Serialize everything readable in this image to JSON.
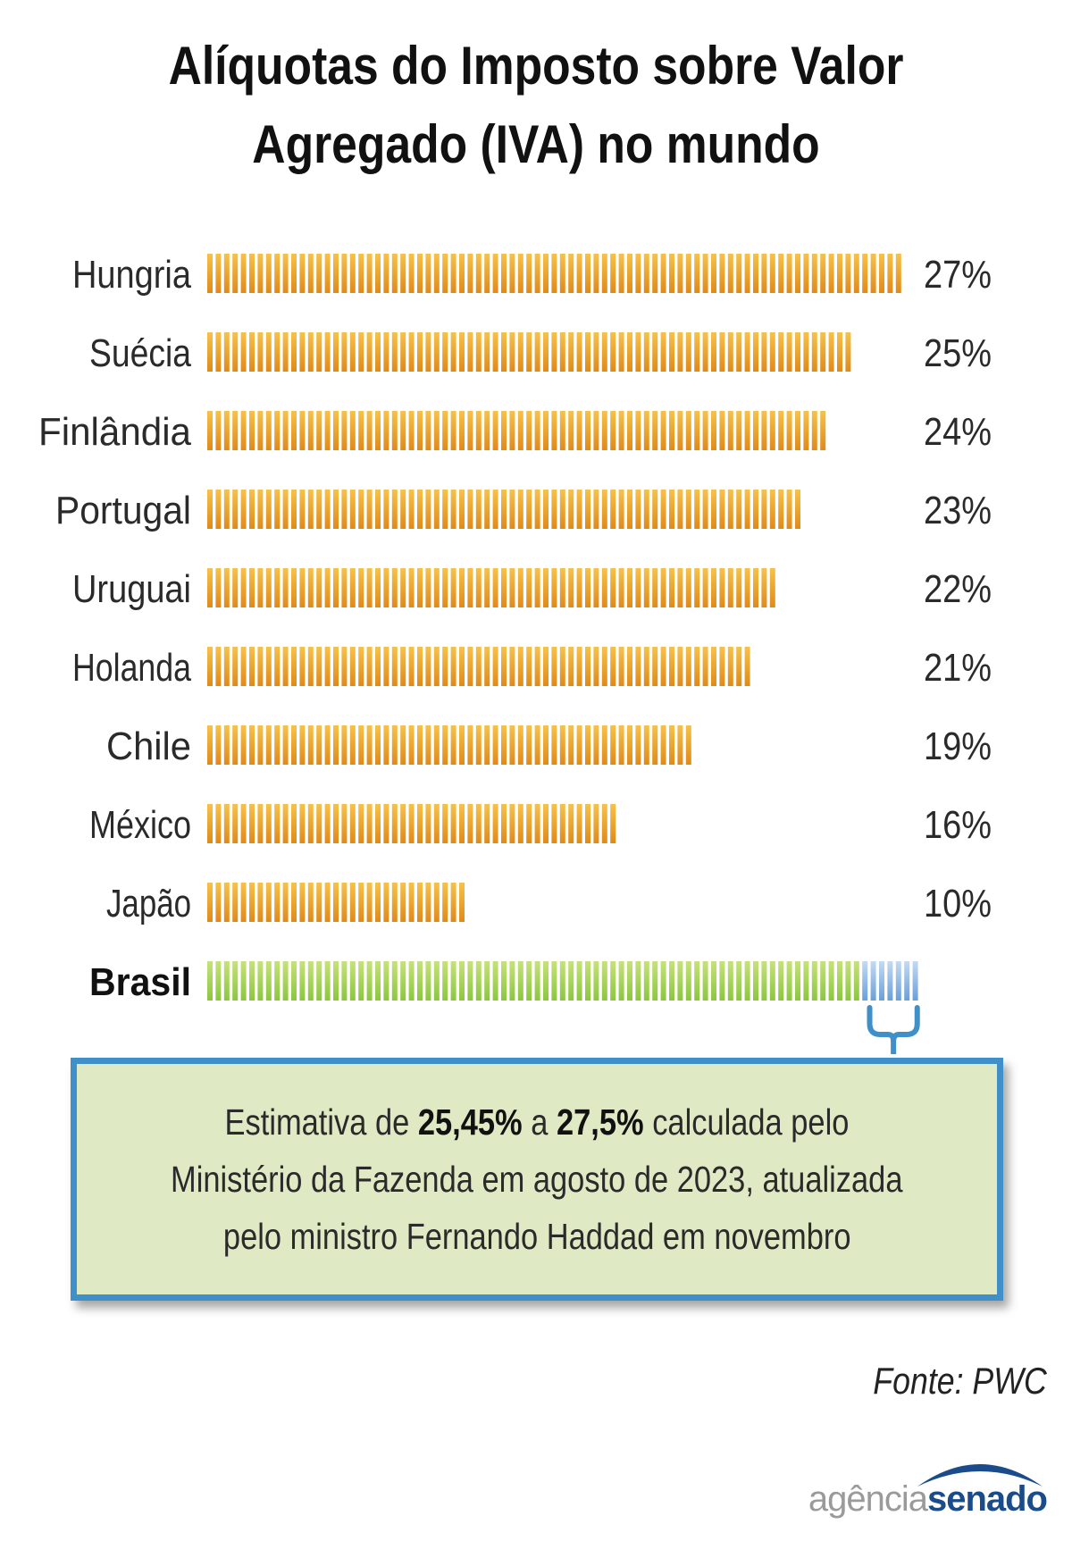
{
  "title_line1": "Alíquotas do Imposto sobre Valor",
  "title_line2": "Agregado (IVA) no mundo",
  "chart_data": {
    "type": "bar",
    "orientation": "horizontal",
    "title": "Alíquotas do Imposto sobre Valor Agregado (IVA) no mundo",
    "categories": [
      "Hungria",
      "Suécia",
      "Finlândia",
      "Portugal",
      "Uruguai",
      "Holanda",
      "Chile",
      "México",
      "Japão",
      "Brasil"
    ],
    "values": [
      27,
      25,
      24,
      23,
      22,
      21,
      19,
      16,
      10,
      null
    ],
    "value_labels": [
      "27%",
      "25%",
      "24%",
      "23%",
      "22%",
      "21%",
      "19%",
      "16%",
      "10%",
      ""
    ],
    "unit": "%",
    "highlight": {
      "category": "Brasil",
      "range": [
        25.45,
        27.5
      ],
      "range_labels": [
        "25,45%",
        "27,5%"
      ]
    },
    "colors": {
      "bars": "#e08a1a",
      "bar_light": "#f6c24a",
      "highlight": "#8cc63f",
      "highlight_light": "#c6e27a",
      "range": "#6a9fd8",
      "range_light": "#c4dbf2",
      "bracket": "#3f8fc8"
    }
  },
  "callout": {
    "pre": "Estimativa de ",
    "low": "25,45%",
    "mid": " a ",
    "high": "27,5%",
    "post": " calculada pelo",
    "line2": "Ministério da Fazenda em agosto de 2023, atualizada",
    "line3": "pelo ministro Fernando Haddad em novembro"
  },
  "source": "Fonte: PWC",
  "logo": {
    "part1": "agência",
    "part2": "senado"
  }
}
